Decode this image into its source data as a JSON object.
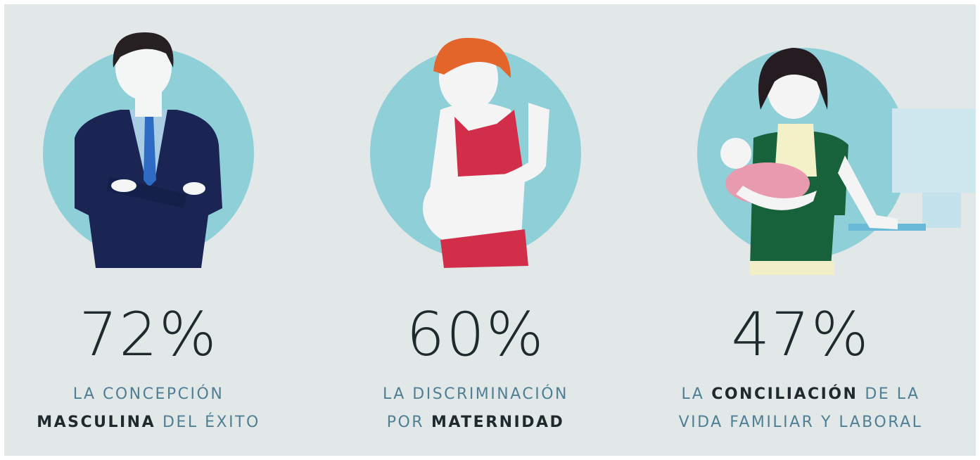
{
  "items": [
    {
      "stat": "72%",
      "caption": [
        [
          {
            "text": "LA CONCEPCIÓN"
          }
        ],
        [
          {
            "text": "MASCULINA",
            "bold": true
          },
          {
            "text": "DEL ÉXITO"
          }
        ]
      ]
    },
    {
      "stat": "60%",
      "caption": [
        [
          {
            "text": "LA DISCRIMINACIÓN"
          }
        ],
        [
          {
            "text": "POR"
          },
          {
            "text": "MATERNIDAD",
            "bold": true
          }
        ]
      ]
    },
    {
      "stat": "47%",
      "caption": [
        [
          {
            "text": "LA"
          },
          {
            "text": "CONCILIACIÓN",
            "bold": true
          },
          {
            "text": "DE LA"
          }
        ],
        [
          {
            "text": "VIDA FAMILIAR Y LABORAL"
          }
        ]
      ]
    }
  ]
}
